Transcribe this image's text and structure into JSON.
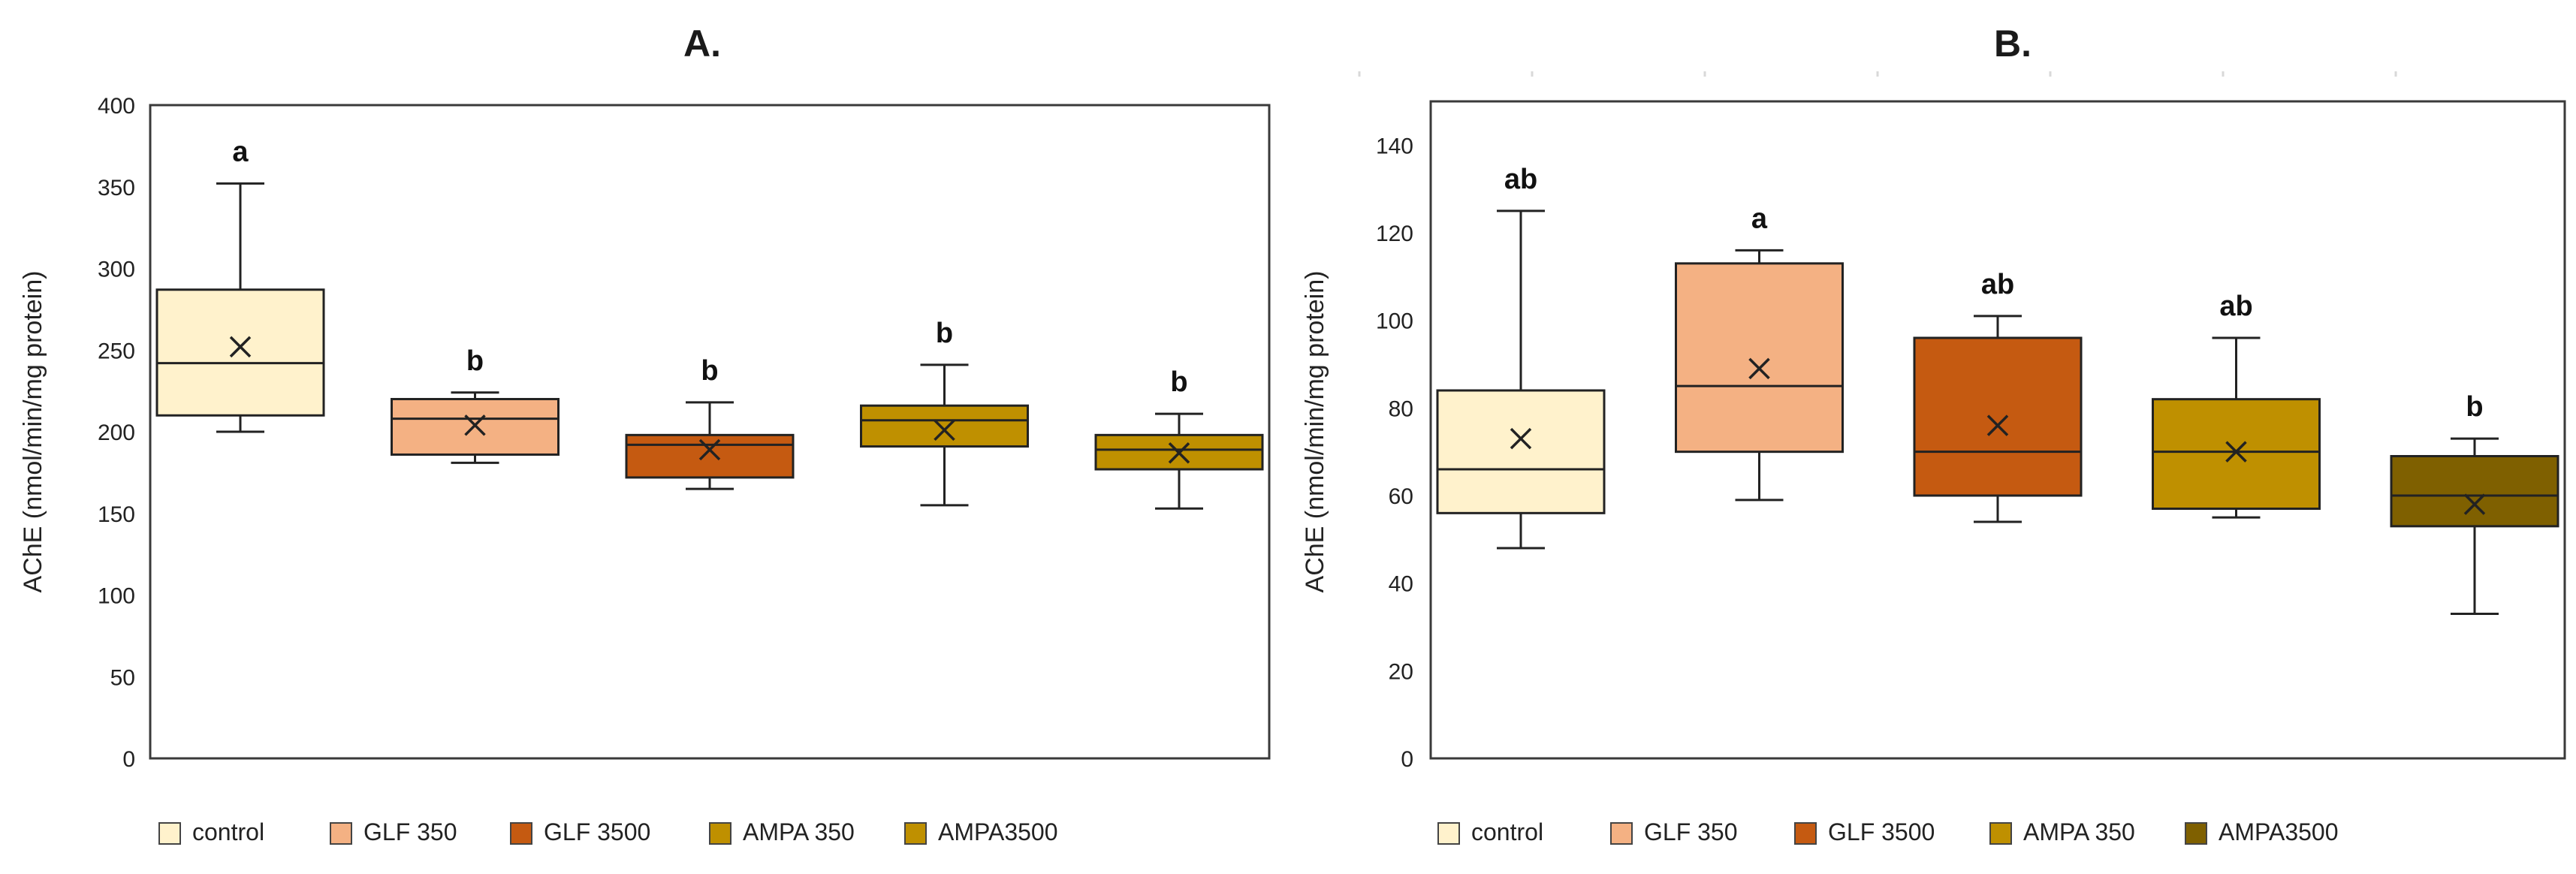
{
  "chart_data": [
    {
      "type": "box",
      "title": "A.",
      "ylabel": "AChE (nmol/min/mg protein)",
      "xlabel": "",
      "ylim": [
        0,
        400
      ],
      "yticks": [
        0,
        50,
        100,
        150,
        200,
        250,
        300,
        350,
        400
      ],
      "categories": [
        "control",
        "GLF 350",
        "GLF 3500",
        "AMPA 350",
        "AMPA3500"
      ],
      "colors": [
        "#fff2cc",
        "#f4b183",
        "#c55a11",
        "#bf9000",
        "#bf9000"
      ],
      "boxes": [
        {
          "name": "control",
          "min": 200,
          "q1": 210,
          "median": 242,
          "q3": 287,
          "max": 352,
          "mean": 252,
          "letter": "a"
        },
        {
          "name": "GLF 350",
          "min": 181,
          "q1": 186,
          "median": 208,
          "q3": 220,
          "max": 224,
          "mean": 204,
          "letter": "b"
        },
        {
          "name": "GLF 3500",
          "min": 165,
          "q1": 172,
          "median": 192,
          "q3": 198,
          "max": 218,
          "mean": 189,
          "letter": "b"
        },
        {
          "name": "AMPA 350",
          "min": 155,
          "q1": 191,
          "median": 207,
          "q3": 216,
          "max": 241,
          "mean": 201,
          "letter": "b"
        },
        {
          "name": "AMPA3500",
          "min": 153,
          "q1": 177,
          "median": 189,
          "q3": 198,
          "max": 211,
          "mean": 187,
          "letter": "b"
        }
      ],
      "legend": [
        "control",
        "GLF 350",
        "GLF 3500",
        "AMPA 350",
        "AMPA3500"
      ]
    },
    {
      "type": "box",
      "title": "B.",
      "ylabel": "AChE (nmol/min/mg protein)",
      "xlabel": "",
      "ylim": [
        0,
        150
      ],
      "yticks": [
        0,
        20,
        40,
        60,
        80,
        100,
        120,
        140
      ],
      "categories": [
        "control",
        "GLF 350",
        "GLF 3500",
        "AMPA 350",
        "AMPA3500"
      ],
      "colors": [
        "#fff2cc",
        "#f4b183",
        "#c55a11",
        "#bf9000",
        "#7f6000"
      ],
      "boxes": [
        {
          "name": "control",
          "min": 48,
          "q1": 56,
          "median": 66,
          "q3": 84,
          "max": 125,
          "mean": 73,
          "letter": "ab"
        },
        {
          "name": "GLF 350",
          "min": 59,
          "q1": 70,
          "median": 85,
          "q3": 113,
          "max": 116,
          "mean": 89,
          "letter": "a"
        },
        {
          "name": "GLF 3500",
          "min": 54,
          "q1": 60,
          "median": 70,
          "q3": 96,
          "max": 101,
          "mean": 76,
          "letter": "ab"
        },
        {
          "name": "AMPA 350",
          "min": 55,
          "q1": 57,
          "median": 70,
          "q3": 82,
          "max": 96,
          "mean": 70,
          "letter": "ab"
        },
        {
          "name": "AMPA3500",
          "min": 33,
          "q1": 53,
          "median": 60,
          "q3": 69,
          "max": 73,
          "mean": 58,
          "letter": "b"
        }
      ],
      "legend": [
        "control",
        "GLF 350",
        "GLF 3500",
        "AMPA 350",
        "AMPA3500"
      ]
    }
  ]
}
